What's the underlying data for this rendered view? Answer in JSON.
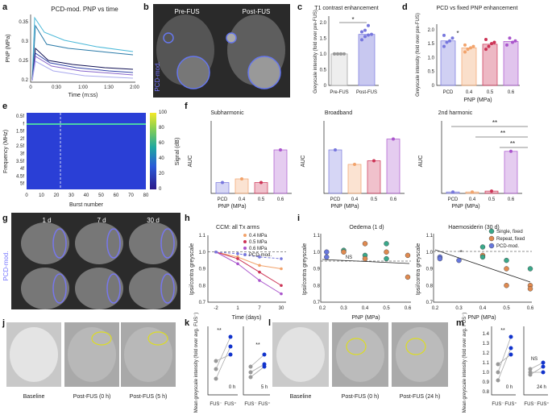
{
  "panel_letters": [
    "a",
    "b",
    "c",
    "d",
    "e",
    "f",
    "g",
    "h",
    "i",
    "j",
    "k",
    "l",
    "m"
  ],
  "colors": {
    "blue": "#7777dd",
    "orange": "#f2a36b",
    "red": "#cc3355",
    "purple": "#aa55cc",
    "grey": "#999999",
    "dark_blue": "#1133cc",
    "yellow": "#dddd22"
  },
  "panel_a": {
    "title": "PCD-mod. PNP vs time",
    "xlabel": "Time (m:ss)",
    "ylabel": "PNP (MPa)",
    "xticks": [
      "0",
      "0:30",
      "1:00",
      "1:30",
      "2:00"
    ],
    "yticks": [
      "0.2",
      "0.25",
      "0.3",
      "0.35"
    ]
  },
  "panel_b": {
    "pre_label": "Pre-FUS",
    "post_label": "Post-FUS",
    "side_label": "PCD-mod."
  },
  "panel_c": {
    "title": "T1 contrast enhancement",
    "ylabel": "Greyscale intensity (fold over pre-FUS)",
    "categories": [
      "Pre-FUS",
      "Post-FUS"
    ],
    "sig": "*",
    "yticks": [
      "0",
      "0.5",
      "1.0",
      "1.5",
      "2.0"
    ]
  },
  "panel_d": {
    "title": "PCD vs fixed PNP enhancement",
    "ylabel": "Greyscale intensity (fold over pre-FUS)",
    "xlabel": "PNP (MPa)",
    "categories": [
      "PCD",
      "0.4",
      "0.5",
      "0.6"
    ],
    "sig": "*",
    "yticks": [
      "0",
      "0.5",
      "1.0",
      "1.5",
      "2.0"
    ]
  },
  "panel_e": {
    "xlabel": "Burst number",
    "ylabel": "Frequency (MHz)",
    "cbar_label": "Signal (dB)",
    "yticks": [
      "0.5f",
      "f",
      "1.5f",
      "2f",
      "2.5f",
      "3f",
      "3.5f",
      "4f",
      "4.5f",
      "5f"
    ],
    "xticks": [
      "0",
      "10",
      "20",
      "30",
      "40",
      "50",
      "60",
      "70",
      "80"
    ],
    "cbar_ticks": [
      "0",
      "20",
      "40",
      "60",
      "80",
      "100"
    ]
  },
  "panel_f": {
    "titles": [
      "Subharmonic",
      "Broadband",
      "2nd harmonic"
    ],
    "xlabel": "PNP (MPa)",
    "ylabel": "AUC",
    "categories": [
      "PCD",
      "0.4",
      "0.5",
      "0.6"
    ],
    "sig": [
      "**",
      "**",
      "**"
    ]
  },
  "panel_g": {
    "labels": [
      "1 d",
      "7 d",
      "30 d"
    ],
    "side_label": "PCD-mod."
  },
  "panel_h": {
    "title": "CCM: all Tx arms",
    "xlabel": "Time (days)",
    "ylabel": "Ipsi/contra greyscale",
    "xticks": [
      "-2",
      "1",
      "7",
      "30"
    ],
    "yticks": [
      "0.7",
      "0.8",
      "0.9",
      "1.0",
      "1.1"
    ],
    "legend": [
      "0.4 MPa",
      "0.5 MPa",
      "0.6 MPa",
      "PCD-mod."
    ]
  },
  "panel_i": {
    "titles": [
      "Oedema (1 d)",
      "Haemosiderin (30 d)"
    ],
    "xlabel": "PNP (MPa)",
    "ylabel": "Ipsi/contra greyscale",
    "xticks": [
      "0.2",
      "0.3",
      "0.4",
      "0.5",
      "0.6"
    ],
    "yticks": [
      "0.7",
      "0.8",
      "0.9",
      "1.0",
      "1.1"
    ],
    "ns": "NS",
    "sig": "*",
    "legend": [
      "Single, fixed",
      "Repeat, fixed",
      "PCD-mod."
    ]
  },
  "panel_j": {
    "labels": [
      "Baseline",
      "Post-FUS (0 h)",
      "Post-FUS (5 h)"
    ]
  },
  "panel_k": {
    "ylabel": "Mean greyscale intensity (fold over avg. FUS⁻)",
    "xcats": [
      "FUS⁻",
      "FUS⁺"
    ],
    "times": [
      "0 h",
      "5 h"
    ],
    "sig": [
      "**",
      "**"
    ]
  },
  "panel_l": {
    "labels": [
      "Baseline",
      "Post-FUS (0 h)",
      "Post-FUS (24 h)"
    ]
  },
  "panel_m": {
    "ylabel": "Mean greyscale intensity (fold over avg. FUS⁻)",
    "xcats": [
      "FUS⁻",
      "FUS⁺"
    ],
    "times": [
      "0 h",
      "24 h"
    ],
    "sig": [
      "**",
      "NS"
    ],
    "yticks": [
      "0.8",
      "0.9",
      "1.0",
      "1.1",
      "1.2",
      "1.3",
      "1.4"
    ]
  },
  "chart_data": [
    {
      "type": "bar",
      "panel": "c",
      "categories": [
        "Pre-FUS",
        "Post-FUS"
      ],
      "values": [
        1.0,
        1.62
      ],
      "points": [
        [
          1,
          1,
          1,
          1,
          1,
          1,
          1
        ],
        [
          1.45,
          1.55,
          1.6,
          1.62,
          1.7,
          1.75,
          1.9
        ]
      ],
      "ylim": [
        0,
        2.2
      ]
    },
    {
      "type": "bar",
      "panel": "d",
      "categories": [
        "PCD",
        "0.4",
        "0.5",
        "0.6"
      ],
      "values": [
        1.6,
        1.35,
        1.48,
        1.58
      ],
      "points": [
        [
          1.4,
          1.55,
          1.6,
          1.7,
          1.8
        ],
        [
          1.2,
          1.3,
          1.35,
          1.4,
          1.45
        ],
        [
          1.3,
          1.4,
          1.5,
          1.55,
          1.65
        ],
        [
          1.45,
          1.7,
          1.55,
          1.6
        ]
      ],
      "ylim": [
        0,
        2.2
      ]
    },
    {
      "type": "bar",
      "panel": "f-subharmonic",
      "categories": [
        "PCD",
        "0.4",
        "0.5",
        "0.6"
      ],
      "values": [
        0.015,
        0.02,
        0.015,
        0.06
      ],
      "ylim": [
        0,
        0.1
      ]
    },
    {
      "type": "bar",
      "panel": "f-broadband",
      "categories": [
        "PCD",
        "0.4",
        "0.5",
        "0.6"
      ],
      "values": [
        60,
        40,
        45,
        75
      ],
      "ylim": [
        0,
        100
      ]
    },
    {
      "type": "bar",
      "panel": "f-2nd",
      "categories": [
        "PCD",
        "0.4",
        "0.5",
        "0.6"
      ],
      "values": [
        0.05,
        0.05,
        0.08,
        1.45
      ],
      "ylim": [
        0,
        2.5
      ]
    },
    {
      "type": "line",
      "panel": "h",
      "x": [
        "-2",
        "1",
        "7",
        "30"
      ],
      "series": [
        {
          "name": "0.4 MPa",
          "values": [
            1.0,
            0.97,
            0.92,
            0.9
          ]
        },
        {
          "name": "0.5 MPa",
          "values": [
            1.0,
            0.96,
            0.88,
            0.8
          ]
        },
        {
          "name": "0.6 MPa",
          "values": [
            1.0,
            0.93,
            0.83,
            0.75
          ]
        },
        {
          "name": "PCD-mod.",
          "values": [
            1.0,
            0.99,
            0.97,
            0.96
          ]
        }
      ],
      "ylim": [
        0.7,
        1.1
      ]
    }
  ]
}
